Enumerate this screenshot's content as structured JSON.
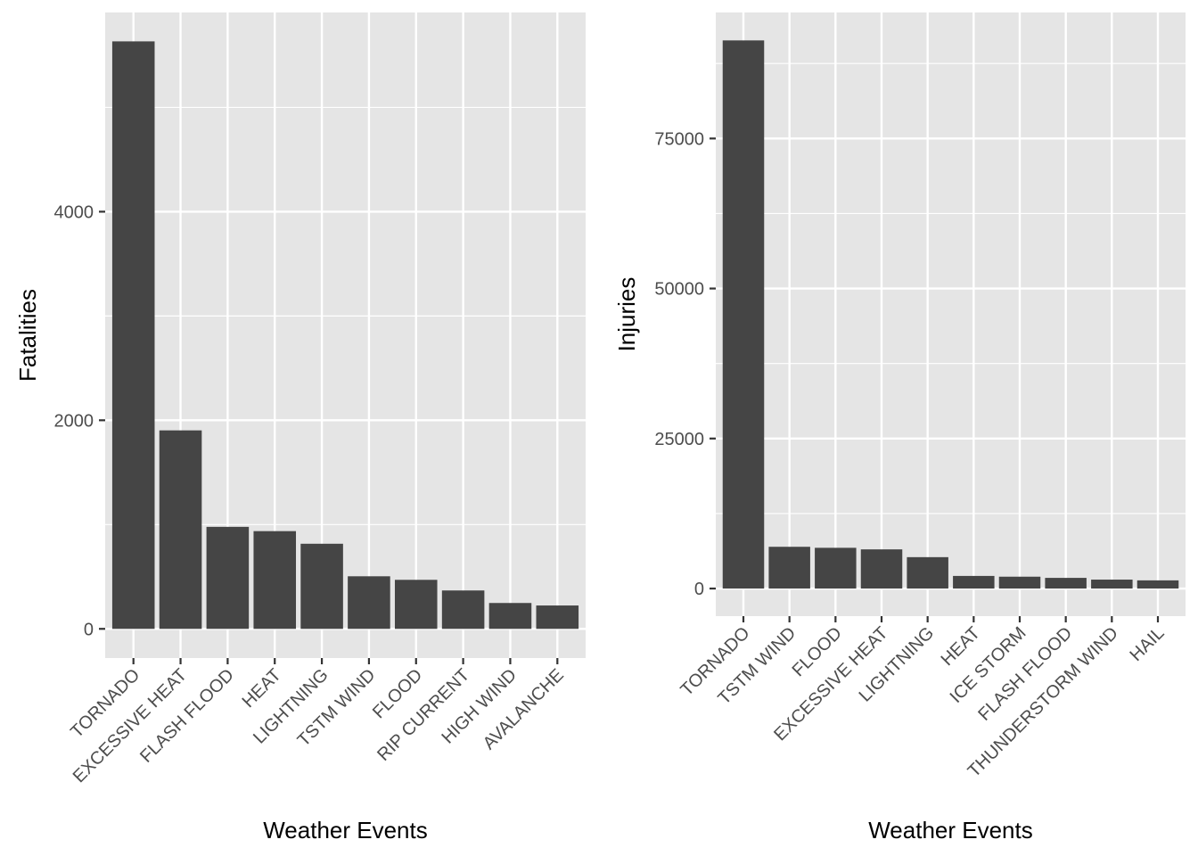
{
  "chart_data": [
    {
      "type": "bar",
      "xlabel": "Weather Events",
      "ylabel": "Fatalities",
      "categories": [
        "TORNADO",
        "EXCESSIVE HEAT",
        "FLASH FLOOD",
        "HEAT",
        "LIGHTNING",
        "TSTM WIND",
        "FLOOD",
        "RIP CURRENT",
        "HIGH WIND",
        "AVALANCHE"
      ],
      "values": [
        5633,
        1903,
        978,
        937,
        816,
        504,
        470,
        368,
        248,
        224
      ],
      "ylim": [
        -280,
        5910
      ],
      "yticks": [
        0,
        2000,
        4000
      ],
      "ytick_labels": [
        "0",
        "2000",
        "4000"
      ],
      "grid": true,
      "bar_color": "#454545",
      "panel_color": "#e5e5e5",
      "grid_color": "#ffffff"
    },
    {
      "type": "bar",
      "xlabel": "Weather Events",
      "ylabel": "Injuries",
      "categories": [
        "TORNADO",
        "TSTM WIND",
        "FLOOD",
        "EXCESSIVE HEAT",
        "LIGHTNING",
        "HEAT",
        "ICE STORM",
        "FLASH FLOOD",
        "THUNDERSTORM WIND",
        "HAIL"
      ],
      "values": [
        91346,
        6957,
        6789,
        6525,
        5230,
        2100,
        1975,
        1777,
        1488,
        1361
      ],
      "ylim": [
        -4600,
        96000
      ],
      "yticks": [
        0,
        25000,
        50000,
        75000
      ],
      "ytick_labels": [
        "0",
        "25000",
        "50000",
        "75000"
      ],
      "grid": true,
      "bar_color": "#454545",
      "panel_color": "#e5e5e5",
      "grid_color": "#ffffff"
    }
  ]
}
